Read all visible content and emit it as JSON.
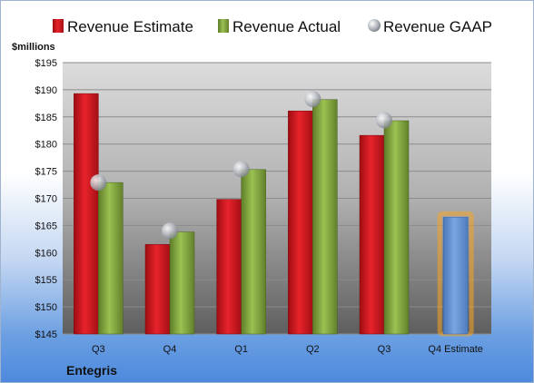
{
  "chart_data": {
    "type": "bar",
    "ylabel": "$millions",
    "footer": "Entegris",
    "categories": [
      "Q3",
      "Q4",
      "Q1",
      "Q2",
      "Q3",
      "Q4 Estimate"
    ],
    "ylim": [
      145,
      195
    ],
    "yticks": [
      "$145",
      "$150",
      "$155",
      "$160",
      "$165",
      "$170",
      "$175",
      "$180",
      "$185",
      "$190",
      "$195"
    ],
    "ytick_values": [
      145,
      150,
      155,
      160,
      165,
      170,
      175,
      180,
      185,
      190,
      195
    ],
    "grid": true,
    "legend_position": "top",
    "series": [
      {
        "name": "Revenue Estimate",
        "type": "bar",
        "color": "#d0151c",
        "values": [
          189.3,
          161.5,
          169.8,
          186.1,
          181.6,
          null
        ]
      },
      {
        "name": "Revenue Actual",
        "type": "bar",
        "color": "#7fa33b",
        "values": [
          172.9,
          163.8,
          175.3,
          188.2,
          184.3,
          null
        ]
      },
      {
        "name": "Revenue GAAP",
        "type": "scatter",
        "color": "#b8bcc4",
        "values": [
          172.9,
          164.0,
          175.4,
          188.3,
          184.4,
          null
        ]
      },
      {
        "name": "Q4 Estimate",
        "type": "bar",
        "color": "#5f8fd0",
        "highlight": "#f5a623",
        "values": [
          null,
          null,
          null,
          null,
          null,
          166.5
        ]
      }
    ]
  }
}
